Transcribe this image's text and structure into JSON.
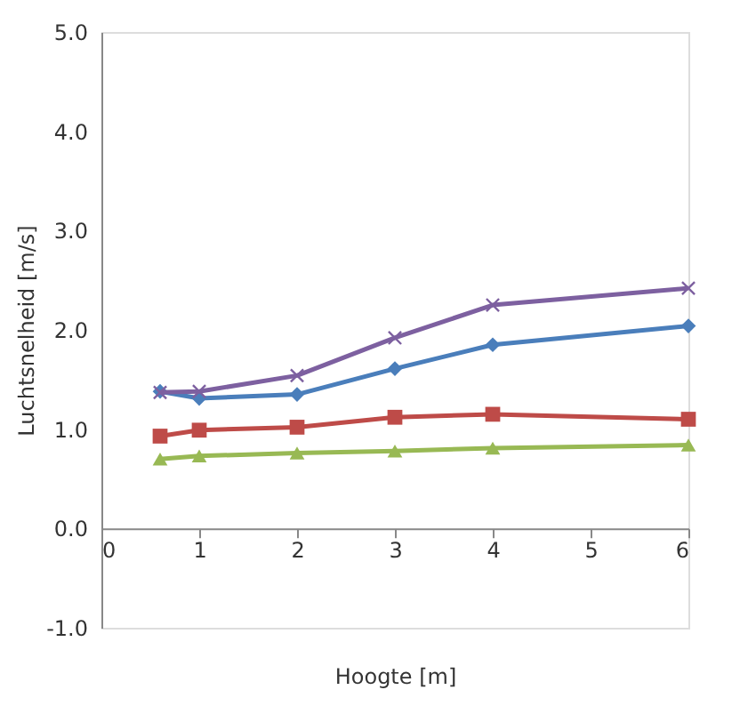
{
  "chart_data": {
    "type": "line",
    "xlabel": "Hoogte [m]",
    "ylabel": "Luchtsnelheid [m/s]",
    "x": [
      0.6,
      1,
      2,
      3,
      4,
      6
    ],
    "series": [
      {
        "color": "#4a7ebb",
        "marker": "diamond",
        "values": [
          1.38,
          1.31,
          1.35,
          1.61,
          1.85,
          2.04
        ]
      },
      {
        "color": "#be4b48",
        "marker": "square",
        "values": [
          0.93,
          0.99,
          1.02,
          1.12,
          1.15,
          1.1
        ]
      },
      {
        "color": "#98b954",
        "marker": "triangle",
        "values": [
          0.7,
          0.73,
          0.76,
          0.78,
          0.81,
          0.84
        ]
      },
      {
        "color": "#7d60a0",
        "marker": "cross",
        "values": [
          1.37,
          1.38,
          1.54,
          1.92,
          2.25,
          2.42
        ]
      }
    ],
    "xlim": [
      0,
      6
    ],
    "xticks": [
      0,
      1,
      2,
      3,
      4,
      5,
      6
    ],
    "ylim": [
      -1,
      5
    ],
    "yticks": [
      {
        "value": -1,
        "label": "-1.0"
      },
      {
        "value": 0,
        "label": "0.0"
      },
      {
        "value": 1,
        "label": "1.0"
      },
      {
        "value": 2,
        "label": "2.0"
      },
      {
        "value": 3,
        "label": "3.0"
      },
      {
        "value": 4,
        "label": "4.0"
      },
      {
        "value": 5,
        "label": "5.0"
      }
    ],
    "grid": false,
    "line_style": "solid"
  }
}
